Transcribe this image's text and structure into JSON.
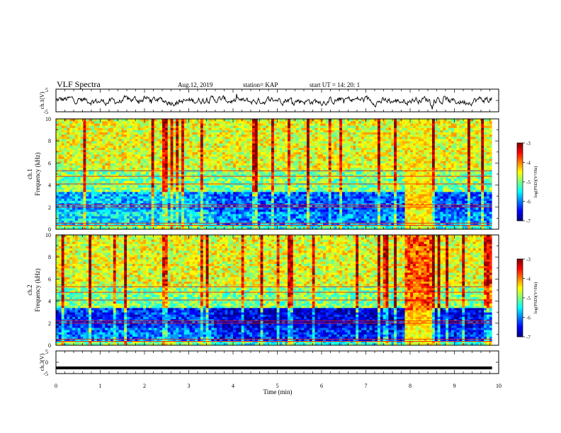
{
  "header": {
    "title": "VLF Spectra",
    "date": "Aug.12, 2019",
    "station": "station= KAP",
    "start": "start  UT =   14: 20: 1"
  },
  "chart_data": [
    {
      "type": "line",
      "panel": "ch1-waveform",
      "ylabel": "ch.1(V)",
      "ylim": [
        -5,
        5
      ],
      "yticks": [
        "5",
        "-5"
      ],
      "description_values": "noisy voltage trace around 0 V, roughly -2.5 to +2.5 V",
      "xlim": [
        0,
        10
      ],
      "trace_end": 9.85
    },
    {
      "type": "heatmap",
      "panel": "ch1-spectrogram",
      "ylabel_line1": "ch.1",
      "ylabel_line2": "Frequency  (kHz)",
      "ylim": [
        0,
        10
      ],
      "yticks": [
        "0",
        "2",
        "4",
        "6",
        "8",
        "10"
      ],
      "xlim": [
        0,
        10
      ],
      "colorbar": {
        "label": "log(PSD)(V²/Hz)",
        "range": [
          -7,
          -3
        ],
        "ticks": [
          "-3",
          "-4",
          "-5",
          "-6",
          "-7"
        ]
      }
    },
    {
      "type": "heatmap",
      "panel": "ch2-spectrogram",
      "ylabel_line1": "ch.2",
      "ylabel_line2": "Frequency  (kHz)",
      "ylim": [
        0,
        10
      ],
      "yticks": [
        "0",
        "2",
        "4",
        "6",
        "8",
        "10"
      ],
      "xlim": [
        0,
        10
      ],
      "colorbar": {
        "label": "log(PSD)(V²/Hz)",
        "range": [
          -7,
          -3
        ],
        "ticks": [
          "-3",
          "-4",
          "-5",
          "-6",
          "-7"
        ]
      }
    },
    {
      "type": "line",
      "panel": "ch3-waveform",
      "ylabel": "ch.3(V)",
      "ylim": [
        -5,
        5
      ],
      "yticks": [
        "5",
        "0",
        "-5"
      ],
      "constant_value": -2.5,
      "xlim": [
        0,
        10
      ],
      "trace_end": 9.85
    }
  ],
  "xaxis": {
    "label": "Time  (min)",
    "ticks": [
      "0",
      "1",
      "2",
      "3",
      "4",
      "5",
      "6",
      "7",
      "8",
      "9",
      "10"
    ]
  },
  "colors": {
    "line": "#000000",
    "spec_base": "#37ee63"
  }
}
